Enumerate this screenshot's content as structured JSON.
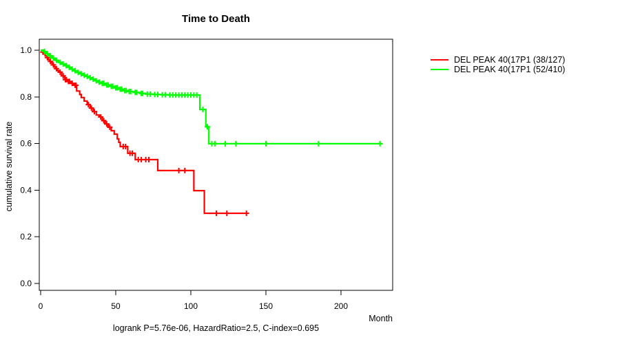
{
  "title": "Time to Death",
  "x_axis_label": "Month",
  "y_axis_label": "cumulative survival rate",
  "footer": "logrank P=5.76e-06, HazardRatio=2.5, C-index=0.695",
  "chart_data": {
    "type": "line",
    "subtype": "kaplan_meier_step",
    "title": "Time to Death",
    "xlabel": "Month",
    "ylabel": "cumulative survival rate",
    "xlim": [
      0,
      234
    ],
    "ylim": [
      0.0,
      1.0
    ],
    "x_ticks": [
      0,
      50,
      100,
      150,
      200
    ],
    "y_ticks": [
      0.0,
      0.2,
      0.4,
      0.6,
      0.8,
      1.0
    ],
    "grid": false,
    "legend_position": "right-outside",
    "annotation": "logrank P=5.76e-06, HazardRatio=2.5, C-index=0.695",
    "series": [
      {
        "name": "DEL PEAK 40(17P1 (38/127)",
        "color": "#ff0000",
        "points": [
          [
            0,
            1.0
          ],
          [
            1,
            0.992
          ],
          [
            2,
            0.984
          ],
          [
            3,
            0.976
          ],
          [
            4,
            0.968
          ],
          [
            5,
            0.96
          ],
          [
            6,
            0.952
          ],
          [
            7,
            0.945
          ],
          [
            8,
            0.937
          ],
          [
            9,
            0.929
          ],
          [
            10,
            0.921
          ],
          [
            11,
            0.913
          ],
          [
            12,
            0.906
          ],
          [
            14,
            0.89
          ],
          [
            16,
            0.874
          ],
          [
            18,
            0.866
          ],
          [
            20,
            0.858
          ],
          [
            22,
            0.85
          ],
          [
            24,
            0.825
          ],
          [
            26,
            0.81
          ],
          [
            27,
            0.797
          ],
          [
            29,
            0.782
          ],
          [
            31,
            0.767
          ],
          [
            33,
            0.752
          ],
          [
            35,
            0.737
          ],
          [
            37,
            0.722
          ],
          [
            39,
            0.714
          ],
          [
            41,
            0.698
          ],
          [
            43,
            0.684
          ],
          [
            45,
            0.67
          ],
          [
            47,
            0.655
          ],
          [
            49,
            0.64
          ],
          [
            51,
            0.62
          ],
          [
            52,
            0.605
          ],
          [
            53,
            0.587
          ],
          [
            58,
            0.558
          ],
          [
            63,
            0.531
          ],
          [
            78,
            0.484
          ],
          [
            102,
            0.398
          ],
          [
            109,
            0.301
          ],
          [
            137,
            0.301
          ]
        ],
        "censors": [
          [
            1.5,
            0.992
          ],
          [
            4.5,
            0.968
          ],
          [
            6.5,
            0.952
          ],
          [
            8.5,
            0.937
          ],
          [
            10.5,
            0.921
          ],
          [
            13,
            0.906
          ],
          [
            15,
            0.89
          ],
          [
            16.5,
            0.874
          ],
          [
            17.2,
            0.874
          ],
          [
            18.5,
            0.866
          ],
          [
            19.2,
            0.866
          ],
          [
            21,
            0.858
          ],
          [
            23,
            0.85
          ],
          [
            23.5,
            0.85
          ],
          [
            31.8,
            0.767
          ],
          [
            33.8,
            0.752
          ],
          [
            35.8,
            0.737
          ],
          [
            40,
            0.714
          ],
          [
            42,
            0.698
          ],
          [
            44,
            0.684
          ],
          [
            46,
            0.67
          ],
          [
            55,
            0.587
          ],
          [
            56.5,
            0.587
          ],
          [
            59.5,
            0.558
          ],
          [
            61,
            0.558
          ],
          [
            65,
            0.531
          ],
          [
            67,
            0.531
          ],
          [
            70,
            0.531
          ],
          [
            72,
            0.531
          ],
          [
            92,
            0.484
          ],
          [
            96,
            0.484
          ],
          [
            117,
            0.301
          ],
          [
            124,
            0.301
          ],
          [
            137,
            0.301
          ]
        ]
      },
      {
        "name": "DEL PEAK 40(17P1 (52/410)",
        "color": "#00ff00",
        "points": [
          [
            0,
            1.0
          ],
          [
            2,
            0.995
          ],
          [
            3,
            0.99
          ],
          [
            4,
            0.985
          ],
          [
            5,
            0.981
          ],
          [
            6,
            0.976
          ],
          [
            7,
            0.971
          ],
          [
            8,
            0.966
          ],
          [
            9,
            0.962
          ],
          [
            10,
            0.957
          ],
          [
            11,
            0.953
          ],
          [
            12,
            0.948
          ],
          [
            14,
            0.941
          ],
          [
            16,
            0.934
          ],
          [
            18,
            0.927
          ],
          [
            20,
            0.919
          ],
          [
            22,
            0.912
          ],
          [
            24,
            0.905
          ],
          [
            26,
            0.899
          ],
          [
            28,
            0.893
          ],
          [
            30,
            0.888
          ],
          [
            32,
            0.882
          ],
          [
            34,
            0.876
          ],
          [
            36,
            0.869
          ],
          [
            38,
            0.863
          ],
          [
            40,
            0.858
          ],
          [
            43,
            0.851
          ],
          [
            46,
            0.845
          ],
          [
            49,
            0.839
          ],
          [
            52,
            0.833
          ],
          [
            55,
            0.827
          ],
          [
            58,
            0.823
          ],
          [
            62,
            0.819
          ],
          [
            66,
            0.815
          ],
          [
            70,
            0.812
          ],
          [
            75,
            0.81
          ],
          [
            80,
            0.809
          ],
          [
            85,
            0.808
          ],
          [
            106,
            0.746
          ],
          [
            110,
            0.672
          ],
          [
            112,
            0.599
          ],
          [
            226,
            0.599
          ]
        ],
        "censors": [
          [
            2.5,
            0.995
          ],
          [
            4.5,
            0.985
          ],
          [
            6.5,
            0.976
          ],
          [
            8.5,
            0.966
          ],
          [
            10.5,
            0.957
          ],
          [
            13,
            0.948
          ],
          [
            15,
            0.941
          ],
          [
            17,
            0.934
          ],
          [
            19,
            0.927
          ],
          [
            21,
            0.919
          ],
          [
            23,
            0.912
          ],
          [
            25,
            0.905
          ],
          [
            27,
            0.899
          ],
          [
            29,
            0.893
          ],
          [
            31,
            0.888
          ],
          [
            33,
            0.882
          ],
          [
            35,
            0.876
          ],
          [
            37,
            0.869
          ],
          [
            39,
            0.863
          ],
          [
            41,
            0.858
          ],
          [
            42,
            0.858
          ],
          [
            44,
            0.851
          ],
          [
            45,
            0.851
          ],
          [
            47,
            0.845
          ],
          [
            48,
            0.845
          ],
          [
            50,
            0.839
          ],
          [
            51,
            0.839
          ],
          [
            53,
            0.833
          ],
          [
            54,
            0.833
          ],
          [
            56,
            0.827
          ],
          [
            57,
            0.827
          ],
          [
            59,
            0.823
          ],
          [
            60,
            0.823
          ],
          [
            63,
            0.819
          ],
          [
            64,
            0.819
          ],
          [
            67,
            0.815
          ],
          [
            68,
            0.815
          ],
          [
            71,
            0.812
          ],
          [
            73,
            0.812
          ],
          [
            76,
            0.81
          ],
          [
            78,
            0.81
          ],
          [
            81,
            0.809
          ],
          [
            83,
            0.809
          ],
          [
            86,
            0.808
          ],
          [
            88,
            0.808
          ],
          [
            90,
            0.808
          ],
          [
            92,
            0.808
          ],
          [
            94,
            0.808
          ],
          [
            96,
            0.808
          ],
          [
            98,
            0.808
          ],
          [
            100,
            0.808
          ],
          [
            102,
            0.808
          ],
          [
            104,
            0.808
          ],
          [
            108,
            0.746
          ],
          [
            111,
            0.672
          ],
          [
            114,
            0.599
          ],
          [
            116,
            0.599
          ],
          [
            123,
            0.599
          ],
          [
            130,
            0.599
          ],
          [
            150,
            0.599
          ],
          [
            185,
            0.599
          ],
          [
            226,
            0.599
          ]
        ]
      }
    ]
  }
}
